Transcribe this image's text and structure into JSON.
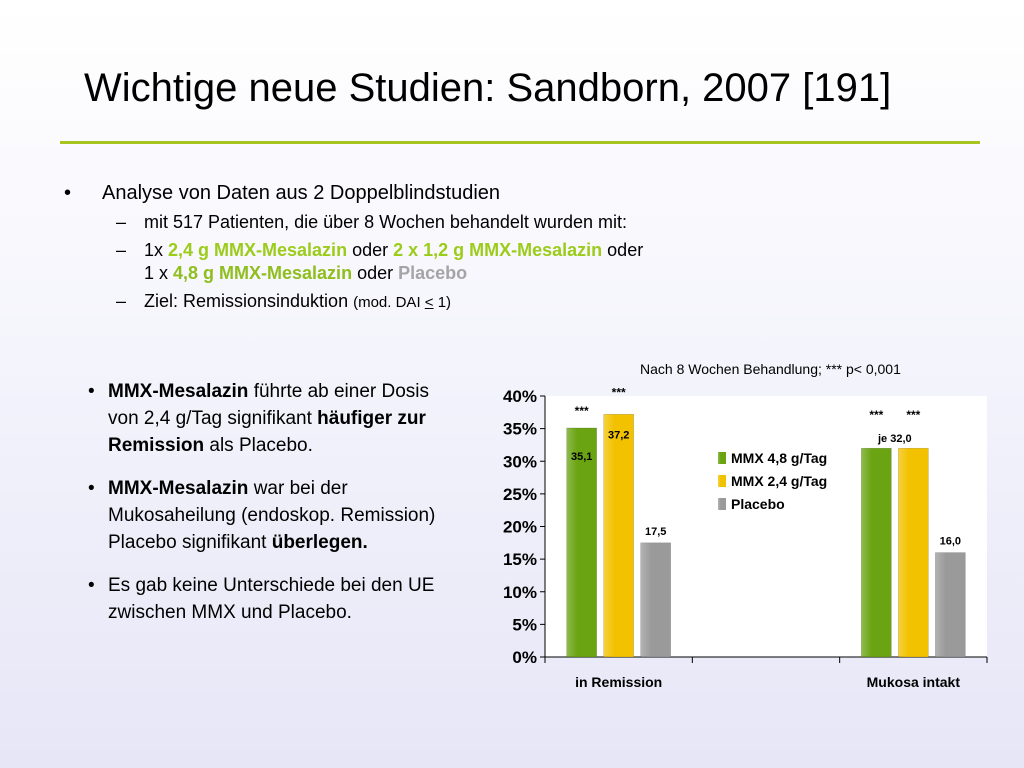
{
  "slide": {
    "title": "Wichtige neue Studien: Sandborn, 2007 [191]",
    "bullet_main": "Analyse von Daten aus 2 Doppelblindstudien",
    "sub1": "mit 517 Patienten, die über 8 Wochen behandelt wurden mit:",
    "sub2_a": "1x ",
    "sub2_b": "2,4 g MMX-Mesalazin",
    "sub2_c": " oder ",
    "sub2_d": "2 x 1,2 g MMX-Mesalazin",
    "sub2_e": "  oder",
    "sub2_f": "1 x ",
    "sub2_g": "4,8 g MMX-Mesalazin",
    "sub2_h": " oder ",
    "sub2_i": "Placebo",
    "sub3_a": "Ziel: Remissionsinduktion ",
    "sub3_b": "(mod. DAI ",
    "sub3_c": "<",
    "sub3_d": " 1)"
  },
  "left_bullets": {
    "b1_bold1": "MMX-Mesalazin",
    "b1_text1": " führte ab einer Dosis von 2,4 g/Tag signifikant ",
    "b1_bold2": "häufiger zur Remission",
    "b1_text2": " als Placebo.",
    "b2_bold1": "MMX-Mesalazin",
    "b2_text1": " war bei der Mukosaheilung (endoskop. Remission) Placebo signifikant ",
    "b2_bold2": "überlegen.",
    "b3": "Es gab keine Unterschiede bei den UE zwischen MMX und Placebo."
  },
  "chart_note": "Nach 8 Wochen Behandlung; ***  p< 0,001",
  "chart_data": {
    "type": "bar",
    "categories": [
      "in Remission",
      "",
      "Mukosa intakt"
    ],
    "series": [
      {
        "name": "MMX 4,8 g/Tag",
        "values": [
          35.1,
          null,
          32.0
        ],
        "labels": [
          "35,1",
          "",
          ""
        ],
        "color": "#6aa412"
      },
      {
        "name": "MMX 2,4 g/Tag",
        "values": [
          37.2,
          null,
          32.0
        ],
        "labels": [
          "37,2",
          "",
          ""
        ],
        "color": "#f2c200"
      },
      {
        "name": "Placebo",
        "values": [
          17.5,
          null,
          16.0
        ],
        "labels": [
          "17,5",
          "",
          "16,0"
        ],
        "color": "#9a9a9a"
      }
    ],
    "annotations": [
      {
        "category": 0,
        "series": 0,
        "text": "***"
      },
      {
        "category": 0,
        "series": 1,
        "text": "***"
      },
      {
        "category": 2,
        "series": 0,
        "text": "***"
      },
      {
        "category": 2,
        "series": 1,
        "text": "***"
      },
      {
        "category": 2,
        "series": 0,
        "text": "je 32,0",
        "kind": "value-shared"
      }
    ],
    "ylim": [
      0,
      40
    ],
    "yticks": [
      "0%",
      "5%",
      "10%",
      "15%",
      "20%",
      "25%",
      "30%",
      "35%",
      "40%"
    ],
    "legend": "inside-center",
    "grid": false
  }
}
